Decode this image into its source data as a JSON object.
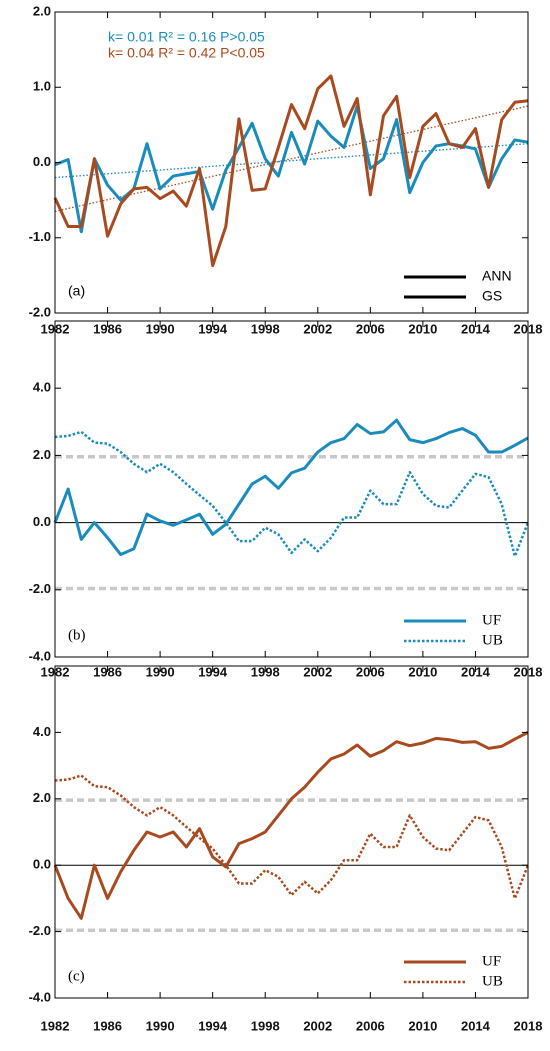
{
  "chart_data": [
    {
      "type": "line",
      "panel_label": "(a)",
      "annotations": [
        {
          "text": "k= 0.01  R² = 0.16 P>0.05",
          "color": "#1a8cbc"
        },
        {
          "text": "k= 0.04  R² = 0.42 P<0.05",
          "color": "#a8491e"
        }
      ],
      "x": [
        1982,
        1983,
        1984,
        1985,
        1986,
        1987,
        1988,
        1989,
        1990,
        1991,
        1992,
        1993,
        1994,
        1995,
        1996,
        1997,
        1998,
        1999,
        2000,
        2001,
        2002,
        2003,
        2004,
        2005,
        2006,
        2007,
        2008,
        2009,
        2010,
        2011,
        2012,
        2013,
        2014,
        2015,
        2016,
        2017,
        2018
      ],
      "xlim": [
        1982,
        2018
      ],
      "xticks": [
        1982,
        1986,
        1990,
        1994,
        1998,
        2002,
        2006,
        2010,
        2014,
        2018
      ],
      "ylim": [
        -2,
        2
      ],
      "yticks": [
        {
          "value": -2,
          "label": "-2.0"
        },
        {
          "value": -1,
          "label": "-1.0"
        },
        {
          "value": 0,
          "label": "0.0"
        },
        {
          "value": 1,
          "label": "1.0"
        },
        {
          "value": 2,
          "label": "2.0"
        }
      ],
      "legend": "lower right",
      "legend_color": "#000000",
      "series": [
        {
          "name": "ANN",
          "color": "#1a8cbc",
          "linestyle": "solid",
          "values": [
            -0.03,
            0.04,
            -0.92,
            0.05,
            -0.3,
            -0.5,
            -0.35,
            0.25,
            -0.35,
            -0.18,
            -0.15,
            -0.12,
            -0.62,
            -0.1,
            0.2,
            0.52,
            0.05,
            -0.18,
            0.4,
            -0.02,
            0.55,
            0.35,
            0.2,
            0.75,
            -0.08,
            0.05,
            0.57,
            -0.4,
            0.0,
            0.22,
            0.25,
            0.22,
            0.18,
            -0.33,
            0.05,
            0.3,
            0.27
          ]
        },
        {
          "name": "GS",
          "color": "#a8491e",
          "linestyle": "solid",
          "values": [
            -0.47,
            -0.85,
            -0.85,
            0.05,
            -0.98,
            -0.55,
            -0.35,
            -0.33,
            -0.48,
            -0.38,
            -0.58,
            -0.08,
            -1.37,
            -0.85,
            0.58,
            -0.37,
            -0.35,
            0.2,
            0.77,
            0.45,
            0.98,
            1.15,
            0.48,
            0.85,
            -0.43,
            0.62,
            0.88,
            -0.2,
            0.48,
            0.65,
            0.25,
            0.2,
            0.45,
            -0.33,
            0.57,
            0.8,
            0.82
          ]
        }
      ],
      "trend_lines": [
        {
          "color": "#1a8cbc",
          "x": [
            1982,
            2018
          ],
          "values": [
            -0.2,
            0.25
          ]
        },
        {
          "color": "#a8491e",
          "x": [
            1982,
            2018
          ],
          "values": [
            -0.65,
            0.75
          ]
        }
      ]
    },
    {
      "type": "line",
      "panel_label": "(b)",
      "x": [
        1982,
        1983,
        1984,
        1985,
        1986,
        1987,
        1988,
        1989,
        1990,
        1991,
        1992,
        1993,
        1994,
        1995,
        1996,
        1997,
        1998,
        1999,
        2000,
        2001,
        2002,
        2003,
        2004,
        2005,
        2006,
        2007,
        2008,
        2009,
        2010,
        2011,
        2012,
        2013,
        2014,
        2015,
        2016,
        2017,
        2018
      ],
      "xlim": [
        1982,
        2018
      ],
      "xticks": [
        1982,
        1986,
        1990,
        1994,
        1998,
        2002,
        2006,
        2010,
        2014,
        2018
      ],
      "ylim": [
        -4,
        6
      ],
      "yticks": [
        {
          "value": -4,
          "label": "-4.0"
        },
        {
          "value": -2,
          "label": "-2.0"
        },
        {
          "value": 0,
          "label": "0.0"
        },
        {
          "value": 2,
          "label": "2.0"
        },
        {
          "value": 4,
          "label": "4.0"
        }
      ],
      "legend": "lower right",
      "hlines": [
        {
          "value": 1.96,
          "color": "#c8c8c8",
          "linestyle": "dashed"
        },
        {
          "value": -1.96,
          "color": "#c8c8c8",
          "linestyle": "dashed"
        },
        {
          "value": 0,
          "color": "#000000",
          "linestyle": "solid"
        }
      ],
      "series": [
        {
          "name": "UF",
          "color": "#1a8cbc",
          "linestyle": "solid",
          "values": [
            0.0,
            1.0,
            -0.5,
            0.0,
            -0.45,
            -0.95,
            -0.78,
            0.25,
            0.05,
            -0.08,
            0.08,
            0.25,
            -0.35,
            -0.05,
            0.55,
            1.15,
            1.38,
            1.02,
            1.48,
            1.62,
            2.1,
            2.38,
            2.5,
            2.92,
            2.65,
            2.7,
            3.05,
            2.47,
            2.38,
            2.5,
            2.68,
            2.8,
            2.6,
            2.1,
            2.1,
            2.3,
            2.52
          ]
        },
        {
          "name": "UB",
          "color": "#1a8cbc",
          "linestyle": "dotted",
          "values": [
            2.55,
            2.58,
            2.7,
            2.38,
            2.35,
            2.1,
            1.75,
            1.5,
            1.75,
            1.5,
            1.15,
            0.82,
            0.5,
            0.0,
            -0.55,
            -0.55,
            -0.15,
            -0.35,
            -0.9,
            -0.5,
            -0.85,
            -0.45,
            0.15,
            0.15,
            0.95,
            0.55,
            0.55,
            1.5,
            0.85,
            0.5,
            0.45,
            0.95,
            1.45,
            1.35,
            0.55,
            -1.0,
            0.0
          ]
        }
      ]
    },
    {
      "type": "line",
      "panel_label": "(c)",
      "x": [
        1982,
        1983,
        1984,
        1985,
        1986,
        1987,
        1988,
        1989,
        1990,
        1991,
        1992,
        1993,
        1994,
        1995,
        1996,
        1997,
        1998,
        1999,
        2000,
        2001,
        2002,
        2003,
        2004,
        2005,
        2006,
        2007,
        2008,
        2009,
        2010,
        2011,
        2012,
        2013,
        2014,
        2015,
        2016,
        2017,
        2018
      ],
      "xlim": [
        1982,
        2018
      ],
      "xticks": [
        1982,
        1986,
        1990,
        1994,
        1998,
        2002,
        2006,
        2010,
        2014,
        2018
      ],
      "ylim": [
        -4,
        6
      ],
      "yticks": [
        {
          "value": -4,
          "label": "-4.0"
        },
        {
          "value": -2,
          "label": "-2.0"
        },
        {
          "value": 0,
          "label": "0.0"
        },
        {
          "value": 2,
          "label": "2.0"
        },
        {
          "value": 4,
          "label": "4.0"
        }
      ],
      "legend": "lower right",
      "hlines": [
        {
          "value": 1.96,
          "color": "#c8c8c8",
          "linestyle": "dashed"
        },
        {
          "value": -1.96,
          "color": "#c8c8c8",
          "linestyle": "dashed"
        },
        {
          "value": 0,
          "color": "#000000",
          "linestyle": "solid"
        }
      ],
      "series": [
        {
          "name": "UF",
          "color": "#a8491e",
          "linestyle": "solid",
          "values": [
            0.0,
            -1.0,
            -1.6,
            0.0,
            -1.0,
            -0.2,
            0.45,
            1.0,
            0.85,
            1.0,
            0.55,
            1.1,
            0.25,
            -0.05,
            0.65,
            0.8,
            1.0,
            1.5,
            2.0,
            2.35,
            2.8,
            3.2,
            3.35,
            3.62,
            3.28,
            3.45,
            3.72,
            3.6,
            3.68,
            3.82,
            3.78,
            3.7,
            3.72,
            3.52,
            3.58,
            3.8,
            4.0
          ]
        },
        {
          "name": "UB",
          "color": "#a8491e",
          "linestyle": "dotted",
          "values": [
            2.55,
            2.58,
            2.7,
            2.38,
            2.35,
            2.1,
            1.75,
            1.5,
            1.75,
            1.5,
            1.15,
            0.82,
            0.5,
            0.0,
            -0.55,
            -0.55,
            -0.15,
            -0.35,
            -0.9,
            -0.5,
            -0.85,
            -0.45,
            0.15,
            0.15,
            0.95,
            0.55,
            0.55,
            1.5,
            0.85,
            0.5,
            0.45,
            0.95,
            1.45,
            1.35,
            0.55,
            -1.0,
            0.0
          ]
        }
      ]
    }
  ]
}
